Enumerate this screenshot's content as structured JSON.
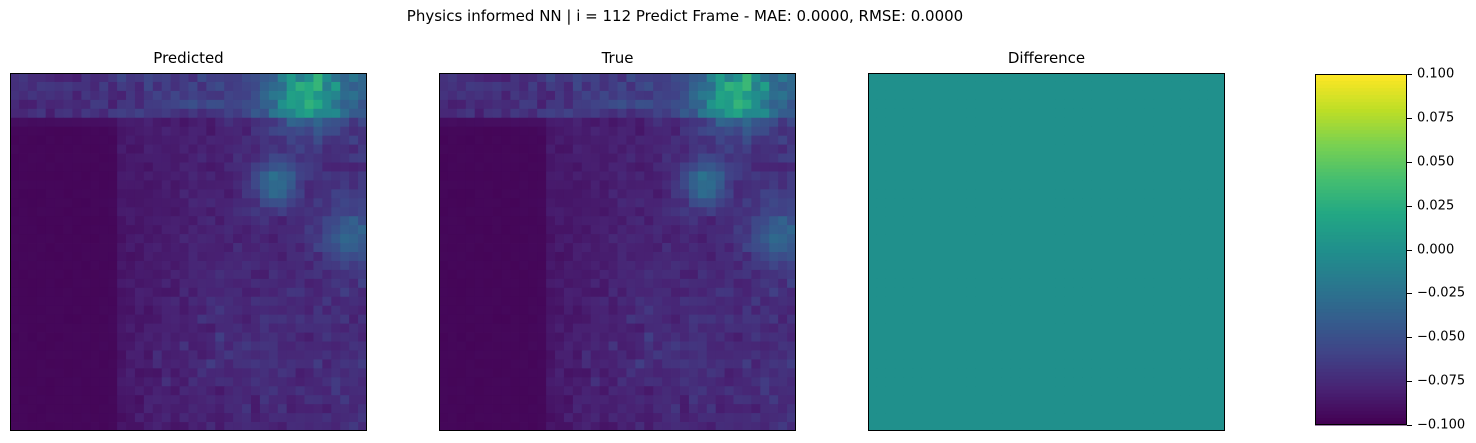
{
  "suptitle": "Physics informed NN | i = 112 Predict Frame - MAE: 0.0000, RMSE: 0.0000",
  "chart_data": [
    {
      "type": "heatmap",
      "title": "Predicted",
      "grid_size": [
        40,
        40
      ],
      "colormap": "viridis",
      "description_values": "mostly low values; brighter patches in the upper right",
      "value_range": [
        0,
        1
      ]
    },
    {
      "type": "heatmap",
      "title": "True",
      "grid_size": [
        40,
        40
      ],
      "colormap": "viridis",
      "value_range": [
        0,
        1
      ]
    },
    {
      "type": "heatmap",
      "title": "Difference",
      "grid_size": [
        40,
        40
      ],
      "colormap": "viridis",
      "uniform_value": 0.0,
      "value_range": [
        -0.1,
        0.1
      ]
    }
  ],
  "colorbar": {
    "colormap": "viridis",
    "range": [
      -0.1,
      0.1
    ],
    "tick_labels": [
      "0.100",
      "0.075",
      "0.050",
      "0.025",
      "0.000",
      "−0.025",
      "−0.050",
      "−0.075",
      "−0.100"
    ]
  }
}
